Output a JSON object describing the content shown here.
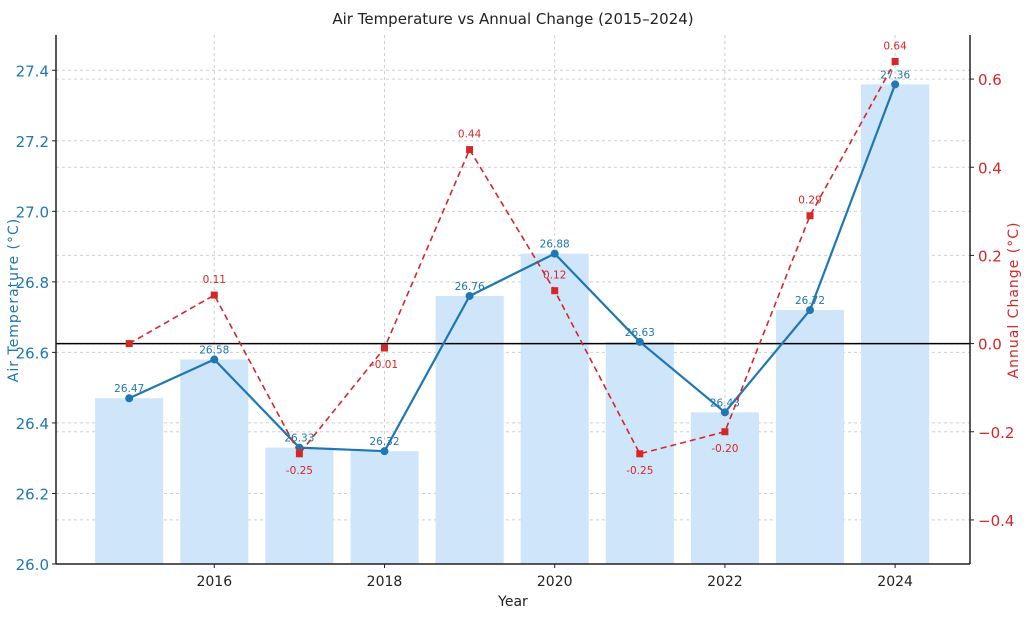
{
  "chart_data": {
    "type": "bar+line",
    "title": "Air Temperature vs Annual Change (2015–2024)",
    "xlabel": "Year",
    "ylabel_left": "Air Temperature (°C)",
    "ylabel_right": "Annual Change (°C)",
    "x": [
      2015,
      2016,
      2017,
      2018,
      2019,
      2020,
      2021,
      2022,
      2023,
      2024
    ],
    "xlim": [
      2014.14,
      2024.88
    ],
    "xticks": [
      "2016",
      "2018",
      "2020",
      "2022",
      "2024"
    ],
    "ylim_left": [
      26.0,
      27.5
    ],
    "yticks_left": [
      "26.0",
      "26.2",
      "26.4",
      "26.6",
      "26.8",
      "27.0",
      "27.2",
      "27.4"
    ],
    "ylim_right": [
      -0.5,
      0.7
    ],
    "yticks_right": [
      "−0.4",
      "−0.2",
      "0.0",
      "0.2",
      "0.4",
      "0.6"
    ],
    "grid": true,
    "series": [
      {
        "kind": "bar",
        "axis": "left",
        "color": "#cfe5f9",
        "values": [
          26.47,
          26.58,
          26.33,
          26.32,
          26.76,
          26.88,
          26.63,
          26.43,
          26.72,
          27.36
        ]
      },
      {
        "kind": "line",
        "axis": "left",
        "color": "#1f77b4",
        "marker": "circle",
        "style": "solid",
        "values": [
          26.47,
          26.58,
          26.33,
          26.32,
          26.76,
          26.88,
          26.63,
          26.43,
          26.72,
          27.36
        ],
        "labels": [
          "26.47",
          "26.58",
          "26.33",
          "26.32",
          "26.76",
          "26.88",
          "26.63",
          "26.43",
          "26.72",
          "27.36"
        ]
      },
      {
        "kind": "line",
        "axis": "right",
        "color": "#d62728",
        "marker": "square",
        "style": "dashed",
        "values": [
          0.0,
          0.11,
          -0.25,
          -0.01,
          0.44,
          0.12,
          -0.25,
          -0.2,
          0.29,
          0.64
        ],
        "labels": [
          "",
          "0.11",
          "-0.25",
          "-0.01",
          "0.44",
          "0.12",
          "-0.25",
          "-0.20",
          "0.29",
          "0.64"
        ]
      }
    ],
    "reference_line": {
      "axis": "right",
      "value": 0.0,
      "color": "#000000"
    }
  }
}
